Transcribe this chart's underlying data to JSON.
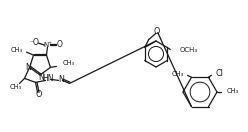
{
  "bg_color": "#ffffff",
  "line_color": "#1a1a1a",
  "lw": 0.9,
  "figsize": [
    2.48,
    1.32
  ],
  "dpi": 100,
  "xlim": [
    0,
    248
  ],
  "ylim": [
    0,
    132
  ]
}
